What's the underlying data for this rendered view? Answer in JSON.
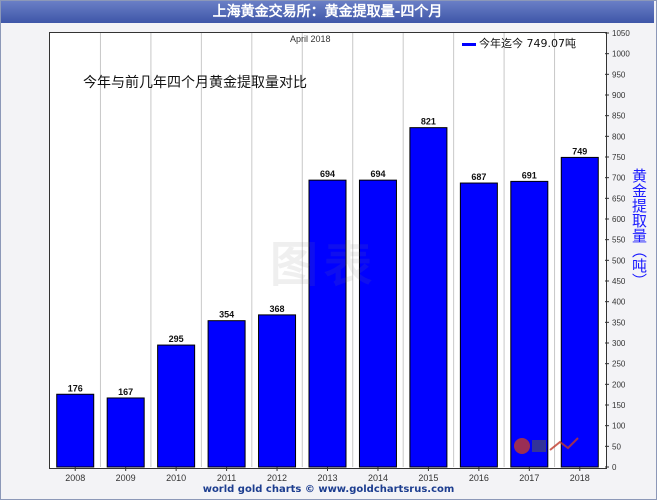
{
  "title": "上海黄金交易所：黄金提取量-四个月",
  "subtitle": "今年与前几年四个月黄金提取量对比",
  "date_label": "April 2018",
  "legend_label": "今年迄今 749.07吨",
  "footer": "world gold charts © www.goldchartsrus.com",
  "watermark": "图表",
  "colors": {
    "bar": "#0000ff",
    "title_bar": "#3e56a8",
    "ylabel": "#1a1aff"
  },
  "chart_data": {
    "type": "bar",
    "title": "上海黄金交易所：黄金提取量-四个月",
    "subtitle": "今年与前几年四个月黄金提取量对比",
    "xlabel": "",
    "ylabel": "黄金提取量（吨）",
    "categories": [
      "2008",
      "2009",
      "2010",
      "2011",
      "2012",
      "2013",
      "2014",
      "2015",
      "2016",
      "2017",
      "2018"
    ],
    "values": [
      176,
      167,
      295,
      354,
      368,
      694,
      694,
      821,
      687,
      691,
      749
    ],
    "data_labels": [
      "176",
      "167",
      "295",
      "354",
      "368",
      "694",
      "694",
      "821",
      "687",
      "691",
      "749"
    ],
    "ylim": [
      0,
      1050
    ],
    "y_ticks": [
      0,
      50,
      100,
      150,
      200,
      250,
      300,
      350,
      400,
      450,
      500,
      550,
      600,
      650,
      700,
      750,
      800,
      850,
      900,
      950,
      1000,
      1050
    ],
    "y_axis_side": "right",
    "grid": "vertical",
    "legend_position": "top-right",
    "legend": [
      "今年迄今 749.07吨"
    ]
  }
}
